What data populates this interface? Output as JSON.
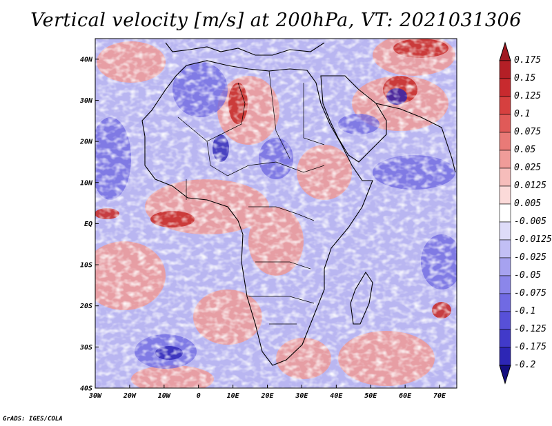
{
  "title": "Vertical velocity [m/s] at 200hPa, VT: 2021031306",
  "credit": "GrADS: IGES/COLA",
  "map": {
    "lon_range": [
      -30,
      75
    ],
    "lat_range": [
      -40,
      45
    ],
    "lat_ticks": [
      {
        "value": 40,
        "label": "40N"
      },
      {
        "value": 30,
        "label": "30N"
      },
      {
        "value": 20,
        "label": "20N"
      },
      {
        "value": 10,
        "label": "10N"
      },
      {
        "value": 0,
        "label": "EQ"
      },
      {
        "value": -10,
        "label": "10S"
      },
      {
        "value": -20,
        "label": "20S"
      },
      {
        "value": -30,
        "label": "30S"
      },
      {
        "value": -40,
        "label": "40S"
      }
    ],
    "lon_ticks": [
      {
        "value": -30,
        "label": "30W"
      },
      {
        "value": -20,
        "label": "20W"
      },
      {
        "value": -10,
        "label": "10W"
      },
      {
        "value": 0,
        "label": "0"
      },
      {
        "value": 10,
        "label": "10E"
      },
      {
        "value": 20,
        "label": "20E"
      },
      {
        "value": 30,
        "label": "30E"
      },
      {
        "value": 40,
        "label": "40E"
      },
      {
        "value": 50,
        "label": "50E"
      },
      {
        "value": 60,
        "label": "60E"
      },
      {
        "value": 70,
        "label": "70E"
      }
    ]
  },
  "colorbar": {
    "levels": [
      {
        "label": "0.175",
        "color": "#b41f26"
      },
      {
        "label": "0.15",
        "color": "#c82a2e"
      },
      {
        "label": "0.125",
        "color": "#d6403f"
      },
      {
        "label": "0.1",
        "color": "#e05a58"
      },
      {
        "label": "0.075",
        "color": "#e97a77"
      },
      {
        "label": "0.05",
        "color": "#f09c99"
      },
      {
        "label": "0.025",
        "color": "#f6bdbb"
      },
      {
        "label": "0.0125",
        "color": "#fbdad9"
      },
      {
        "label": "0.005",
        "color": "#ffffff"
      },
      {
        "label": "-0.005",
        "color": "#dedcf9"
      },
      {
        "label": "-0.0125",
        "color": "#c2bff5"
      },
      {
        "label": "-0.025",
        "color": "#a6a2f0"
      },
      {
        "label": "-0.05",
        "color": "#8b86ea"
      },
      {
        "label": "-0.075",
        "color": "#706ae3"
      },
      {
        "label": "-0.1",
        "color": "#5750d8"
      },
      {
        "label": "-0.125",
        "color": "#413ac9"
      },
      {
        "label": "-0.175",
        "color": "#2d26b5"
      },
      {
        "label": "-0.2",
        "color": "#1d1699"
      }
    ],
    "top_arrow_color": "#a01820",
    "bottom_arrow_color": "#140e80"
  }
}
